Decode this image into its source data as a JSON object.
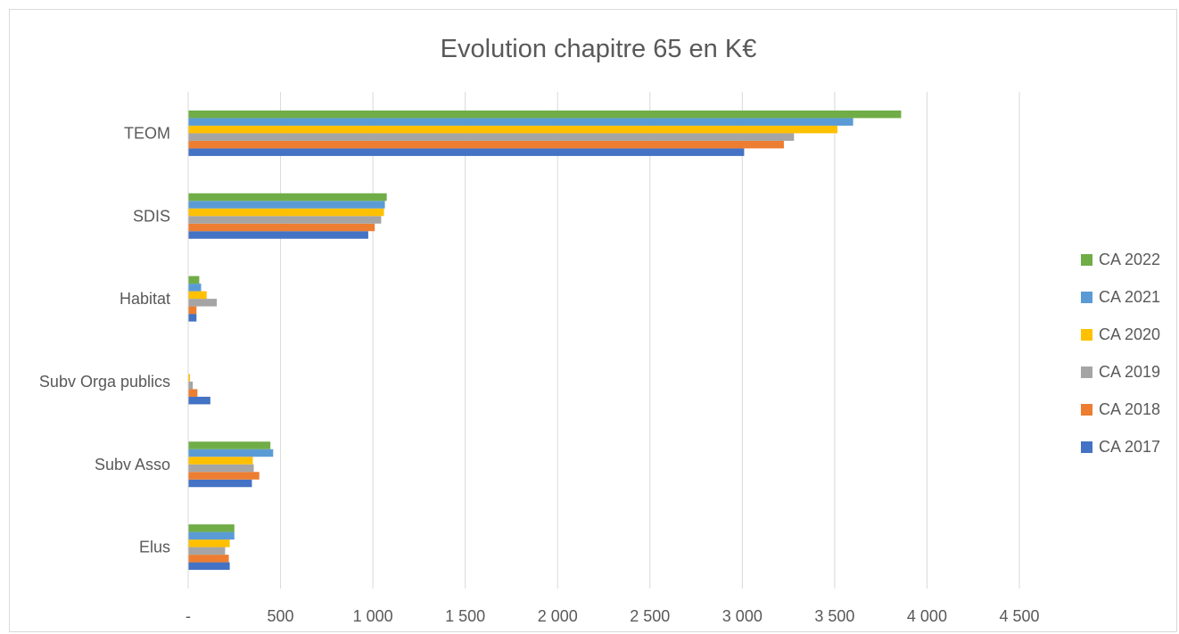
{
  "chart_data": {
    "type": "bar",
    "orientation": "horizontal",
    "title": "Evolution chapitre 65 en K€",
    "xlabel": "",
    "ylabel": "",
    "xlim": [
      0,
      4500
    ],
    "x_ticks": [
      0,
      500,
      1000,
      1500,
      2000,
      2500,
      3000,
      3500,
      4000,
      4500
    ],
    "x_tick_labels": [
      "-",
      "500",
      "1 000",
      "1 500",
      "2 000",
      "2 500",
      "3 000",
      "3 500",
      "4 000",
      "4 500"
    ],
    "grid": "vertical",
    "legend_position": "right",
    "categories": [
      "Elus",
      "Subv Asso",
      "Subv Orga publics",
      "Habitat",
      "SDIS",
      "TEOM"
    ],
    "series": [
      {
        "name": "CA 2017",
        "color": "#4472C4",
        "values": [
          225,
          345,
          120,
          45,
          975,
          3010
        ]
      },
      {
        "name": "CA 2018",
        "color": "#ED7D31",
        "values": [
          220,
          385,
          50,
          45,
          1010,
          3225
        ]
      },
      {
        "name": "CA 2019",
        "color": "#A5A5A5",
        "values": [
          200,
          355,
          25,
          155,
          1045,
          3280
        ]
      },
      {
        "name": "CA 2020",
        "color": "#FFC000",
        "values": [
          225,
          350,
          10,
          100,
          1060,
          3515
        ]
      },
      {
        "name": "CA 2021",
        "color": "#5B9BD5",
        "values": [
          250,
          460,
          0,
          70,
          1065,
          3600
        ]
      },
      {
        "name": "CA 2022",
        "color": "#70AD47",
        "values": [
          250,
          445,
          0,
          60,
          1075,
          3860
        ]
      }
    ]
  }
}
